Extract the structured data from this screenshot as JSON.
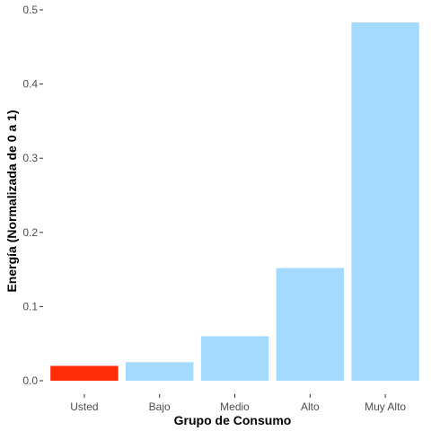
{
  "chart_data": {
    "type": "bar",
    "title": "",
    "xlabel": "Grupo de Consumo",
    "ylabel": "Energía (Normalizada de 0 a 1)",
    "categories": [
      "Usted",
      "Bajo",
      "Medio",
      "Alto",
      "Muy Alto"
    ],
    "values": [
      0.02,
      0.025,
      0.06,
      0.152,
      0.483
    ],
    "ylim": [
      0,
      0.5
    ],
    "yticks": [
      0.0,
      0.1,
      0.2,
      0.3,
      0.4,
      0.5
    ],
    "ytick_labels": [
      "0.0",
      "0.1",
      "0.2",
      "0.3",
      "0.4",
      "0.5"
    ],
    "bar_colors": [
      "#ff2c06",
      "#a4daff",
      "#a4daff",
      "#a4daff",
      "#a4daff"
    ],
    "grid": false,
    "legend": "none"
  }
}
